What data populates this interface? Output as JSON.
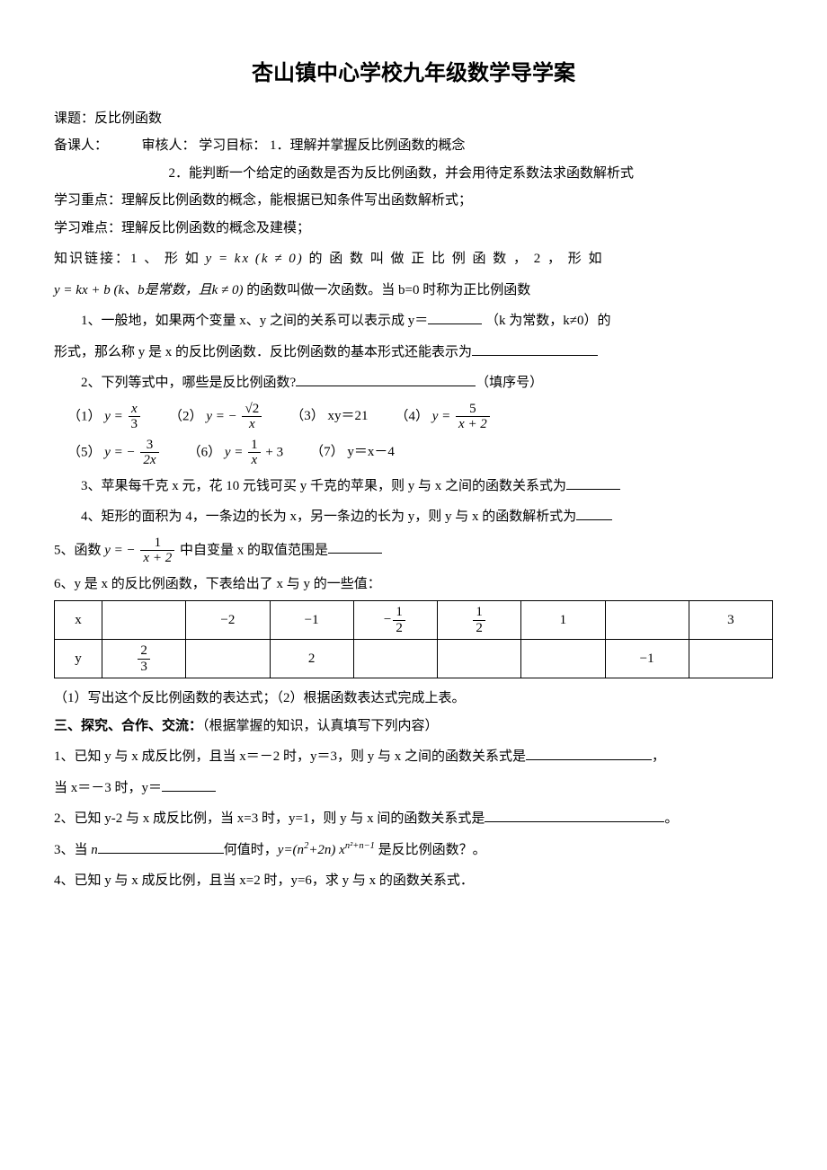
{
  "title": "杏山镇中心学校九年级数学导学案",
  "topic_label": "课题：反比例函数",
  "preparer_label": "备课人：",
  "reviewer_label": "审核人：",
  "goal_label": "学习目标：",
  "goal1": "1．理解并掌握反比例函数的概念",
  "goal2": "2．能判断一个给定的函数是否为反比例函数，并会用待定系数法求函数解析式",
  "focus_label": "学习重点：",
  "focus_text": "理解反比例函数的概念，能根据已知条件写出函数解析式；",
  "difficulty_label": "学习难点：",
  "difficulty_text": "理解反比例函数的概念及建模；",
  "link_label": "知识链接：",
  "link_1a": "1 、 形 如 ",
  "link_eq1": "y = kx (k ≠ 0)",
  "link_1b": " 的 函 数 叫 做 正 比 例 函 数 ， 2 ， 形 如",
  "link_eq2": "y = kx + b (k、b是常数，且k ≠ 0)",
  "link_2b": " 的函数叫做一次函数。当 b=0 时称为正比例函数",
  "q1a": "1、一般地，如果两个变量 x、y 之间的关系可以表示成 y＝",
  "q1b": "（k 为常数，k≠0）的",
  "q1c": "形式，那么称 y 是 x 的反比例函数．反比例函数的基本形式还能表示为",
  "q2": "2、下列等式中，哪些是反比例函数?",
  "q2_tail": "（填序号）",
  "eq_items_row1": {
    "i1_pre": "（1）",
    "i1_lhs": "y =",
    "i1_num": "x",
    "i1_den": "3",
    "i2_pre": "（2）",
    "i2_lhs": "y = −",
    "i2_num": "√2",
    "i2_den": "x",
    "i3_pre": "（3）",
    "i3_text": "xy＝21",
    "i4_pre": "（4）",
    "i4_lhs": "y =",
    "i4_num": "5",
    "i4_den": "x + 2"
  },
  "eq_items_row2": {
    "i5_pre": "（5）",
    "i5_lhs": "y = −",
    "i5_num": "3",
    "i5_den": "2x",
    "i6_pre": "（6）",
    "i6_lhs": "y =",
    "i6_num": "1",
    "i6_den": "x",
    "i6_tail": " + 3",
    "i7_pre": "（7）",
    "i7_text": "y＝x－4"
  },
  "q3": "3、苹果每千克 x 元，花 10 元钱可买 y 千克的苹果，则 y 与 x 之间的函数关系式为",
  "q4": "4、矩形的面积为 4，一条边的长为 x，另一条边的长为 y，则 y 与 x 的函数解析式为",
  "q5a": "5、函数 ",
  "q5_lhs": "y = −",
  "q5_num": "1",
  "q5_den": "x + 2",
  "q5b": " 中自变量 x 的取值范围是",
  "q6": "6、y 是 x 的反比例函数，下表给出了 x 与 y 的一些值：",
  "table": {
    "row_x_label": "x",
    "row_y_label": "y",
    "x_vals": [
      "",
      "−2",
      "−1",
      "frac:-1/2",
      "frac:1/2",
      "1",
      "",
      "3"
    ],
    "y_vals": [
      "frac:2/3",
      "",
      "2",
      "",
      "",
      "",
      "−1",
      ""
    ]
  },
  "q6_sub": "（1）写出这个反比例函数的表达式；（2）根据函数表达式完成上表。",
  "section3_title": "三、探究、合作、交流：",
  "section3_tail": "（根据掌握的知识，认真填写下列内容）",
  "p1a": "1、已知 y 与 x 成反比例，且当 x＝－2 时，y＝3，则 y 与 x 之间的函数关系式是",
  "p1b": "，",
  "p1c": "当 x＝－3 时，y＝",
  "p2a": "2、已知 y-2 与 x 成反比例，当 x=3 时，y=1，则 y 与 x 间的函数关系式是",
  "p2b": "。",
  "p3a": "3、当 ",
  "p3_var": "n",
  "p3b": "何值时，",
  "p3_eq_pre": "y=(n",
  "p3_eq_sup1": "2",
  "p3_eq_mid": "+2n) x",
  "p3_eq_sup2": "n²+n−1",
  "p3c": " 是反比例函数？。",
  "p4": "4、已知 y 与 x 成反比例，且当 x=2 时，y=6，求 y 与 x 的函数关系式．"
}
